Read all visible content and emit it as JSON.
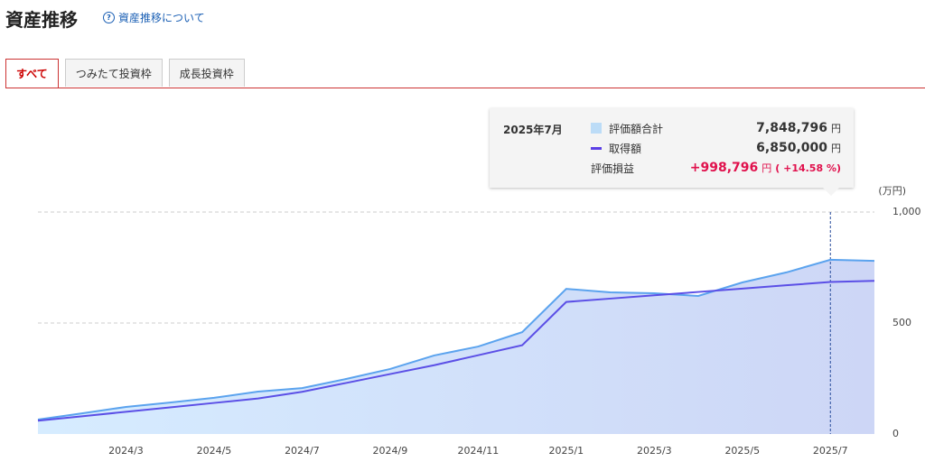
{
  "header": {
    "title": "資産推移",
    "help": "資産推移について"
  },
  "tabs": [
    "すべて",
    "つみたて投資枠",
    "成長投資枠"
  ],
  "tooltip": {
    "date": "2025年7月",
    "rows": [
      {
        "label": "評価額合計",
        "value": "7,848,796",
        "unit": "円"
      },
      {
        "label": "取得額",
        "value": "6,850,000",
        "unit": "円"
      }
    ],
    "gain_label": "評価損益",
    "gain": "+998,796",
    "gain_unit": "円",
    "gain_pct": "( +14.58 %)"
  },
  "chart_data": {
    "type": "area",
    "unit_label": "(万円)",
    "categories": [
      null,
      null,
      "2024/3",
      null,
      "2024/5",
      null,
      "2024/7",
      null,
      "2024/9",
      null,
      "2024/11",
      null,
      "2025/1",
      null,
      "2025/3",
      null,
      "2025/5",
      null,
      "2025/7",
      null
    ],
    "series": [
      {
        "name": "評価額合計",
        "color": "#5ba3ee",
        "values": [
          65,
          93,
          122,
          142,
          163,
          191,
          207,
          248,
          293,
          354,
          394,
          459,
          654,
          638,
          634,
          622,
          683,
          728,
          785,
          780
        ]
      },
      {
        "name": "取得額",
        "color": "#5b4fe6",
        "values": [
          60,
          80,
          100,
          120,
          140,
          160,
          190,
          230,
          270,
          310,
          355,
          400,
          595,
          610,
          625,
          640,
          655,
          670,
          685,
          690
        ]
      }
    ],
    "ylim": [
      0,
      1000
    ],
    "yticks": [
      0,
      500,
      {
        "value": 1000,
        "label": "1,000"
      }
    ],
    "grid": true
  }
}
